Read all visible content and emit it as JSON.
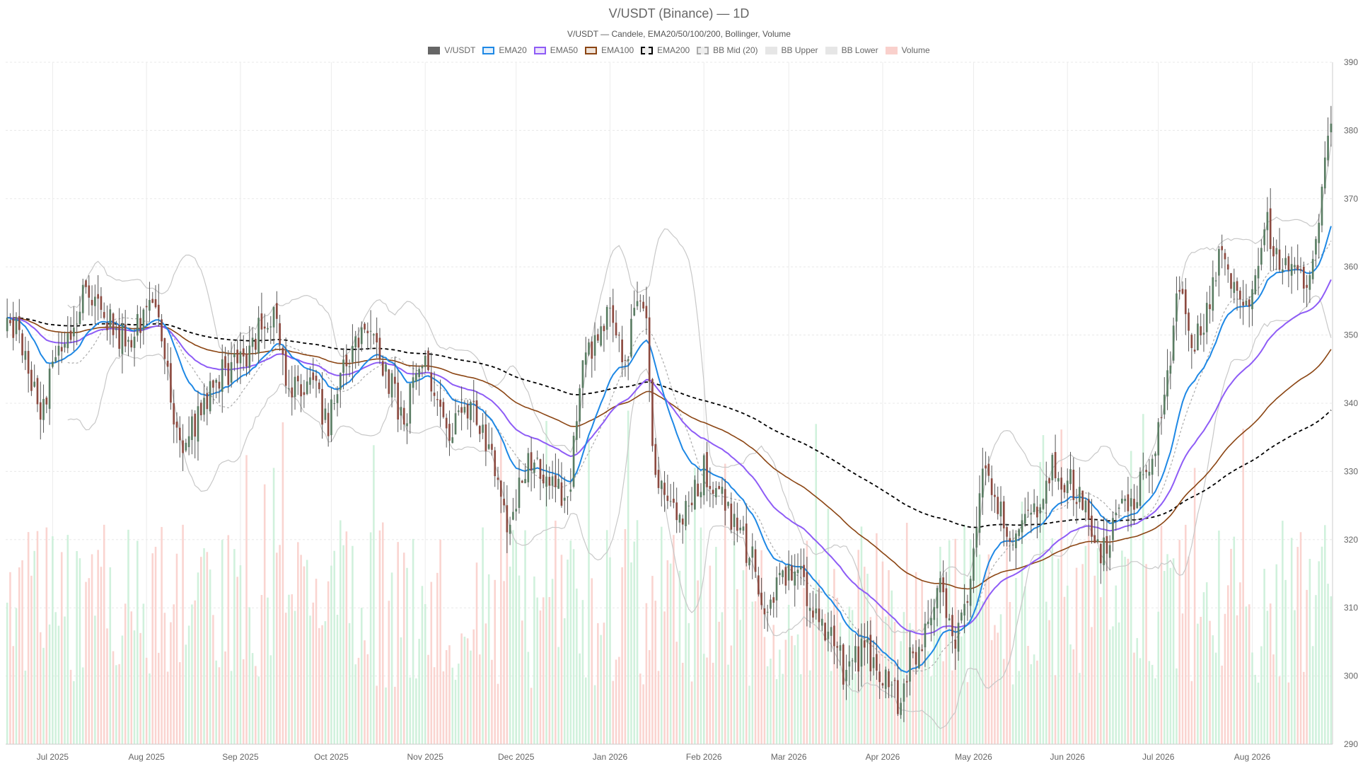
{
  "chart_data": {
    "type": "candlestick",
    "title": "V/USDT (Binance) — 1D",
    "subtitle": "V/USDT — Candele, EMA20/50/100/200, Bollinger, Volume",
    "legend": [
      {
        "name": "V/USDT",
        "fill": "#666666",
        "border": "#666666",
        "dash": false
      },
      {
        "name": "EMA20",
        "fill": "#e3f0fc",
        "border": "#1e88e5",
        "dash": false
      },
      {
        "name": "EMA50",
        "fill": "#ede3fb",
        "border": "#8e5cf6",
        "dash": false
      },
      {
        "name": "EMA100",
        "fill": "#efe3d9",
        "border": "#8b4513",
        "dash": false
      },
      {
        "name": "EMA200",
        "fill": "#eeeeee",
        "border": "#000000",
        "dash": true
      },
      {
        "name": "BB Mid (20)",
        "fill": "#eeeeee",
        "border": "#aaaaaa",
        "dash": true
      },
      {
        "name": "BB Upper",
        "fill": "#e6e6e6",
        "border": "#e6e6e6",
        "dash": false
      },
      {
        "name": "BB Lower",
        "fill": "#e6e6e6",
        "border": "#e6e6e6",
        "dash": false
      },
      {
        "name": "Volume",
        "fill": "#f9d0cc",
        "border": "#f9d0cc",
        "dash": false
      }
    ],
    "x_ticks": [
      "Jul 2025",
      "Aug 2025",
      "Sep 2025",
      "Oct 2025",
      "Nov 2025",
      "Dec 2025",
      "Jan 2026",
      "Feb 2026",
      "Mar 2026",
      "Apr 2026",
      "May 2026",
      "Jun 2026",
      "Jul 2026",
      "Aug 2026"
    ],
    "ylim": [
      290,
      390
    ],
    "y_ticks": [
      290,
      300,
      310,
      320,
      330,
      340,
      350,
      360,
      370,
      380,
      390
    ],
    "y_axis_side": "right",
    "grid": true,
    "x_range": {
      "start": "2025-06-16",
      "end": "2026-08-27"
    },
    "close_keypoints": [
      [
        "2025-06-16",
        353
      ],
      [
        "2025-06-20",
        350
      ],
      [
        "2025-06-26",
        339
      ],
      [
        "2025-07-01",
        344
      ],
      [
        "2025-07-05",
        348
      ],
      [
        "2025-07-10",
        355
      ],
      [
        "2025-07-15",
        356
      ],
      [
        "2025-07-20",
        352
      ],
      [
        "2025-07-26",
        348
      ],
      [
        "2025-08-01",
        354
      ],
      [
        "2025-08-05",
        352
      ],
      [
        "2025-08-10",
        338
      ],
      [
        "2025-08-14",
        333
      ],
      [
        "2025-08-18",
        339
      ],
      [
        "2025-08-24",
        344
      ],
      [
        "2025-08-31",
        345
      ],
      [
        "2025-09-06",
        350
      ],
      [
        "2025-09-12",
        352
      ],
      [
        "2025-09-18",
        341
      ],
      [
        "2025-09-24",
        344
      ],
      [
        "2025-09-30",
        337
      ],
      [
        "2025-10-05",
        345
      ],
      [
        "2025-10-12",
        351
      ],
      [
        "2025-10-18",
        345
      ],
      [
        "2025-10-25",
        338
      ],
      [
        "2025-11-01",
        347
      ],
      [
        "2025-11-05",
        341
      ],
      [
        "2025-11-10",
        336
      ],
      [
        "2025-11-16",
        341
      ],
      [
        "2025-11-22",
        334
      ],
      [
        "2025-11-28",
        322
      ],
      [
        "2025-12-03",
        330
      ],
      [
        "2025-12-08",
        331
      ],
      [
        "2025-12-14",
        327
      ],
      [
        "2025-12-19",
        328
      ],
      [
        "2025-12-22",
        344
      ],
      [
        "2025-12-27",
        350
      ],
      [
        "2026-01-01",
        353
      ],
      [
        "2026-01-06",
        345
      ],
      [
        "2026-01-10",
        355
      ],
      [
        "2026-01-13",
        352
      ],
      [
        "2026-01-16",
        328
      ],
      [
        "2026-01-20",
        326
      ],
      [
        "2026-01-25",
        324
      ],
      [
        "2026-02-01",
        330
      ],
      [
        "2026-02-06",
        326
      ],
      [
        "2026-02-12",
        322
      ],
      [
        "2026-02-18",
        316
      ],
      [
        "2026-02-22",
        308
      ],
      [
        "2026-02-27",
        316
      ],
      [
        "2026-03-05",
        314
      ],
      [
        "2026-03-10",
        310
      ],
      [
        "2026-03-15",
        306
      ],
      [
        "2026-03-20",
        300
      ],
      [
        "2026-03-26",
        304
      ],
      [
        "2026-04-01",
        300
      ],
      [
        "2026-04-06",
        296
      ],
      [
        "2026-04-10",
        302
      ],
      [
        "2026-04-15",
        306
      ],
      [
        "2026-04-20",
        312
      ],
      [
        "2026-04-25",
        306
      ],
      [
        "2026-04-30",
        312
      ],
      [
        "2026-05-04",
        331
      ],
      [
        "2026-05-08",
        327
      ],
      [
        "2026-05-12",
        320
      ],
      [
        "2026-05-18",
        322
      ],
      [
        "2026-05-24",
        327
      ],
      [
        "2026-05-28",
        331
      ],
      [
        "2026-06-02",
        328
      ],
      [
        "2026-06-07",
        324
      ],
      [
        "2026-06-12",
        319
      ],
      [
        "2026-06-17",
        322
      ],
      [
        "2026-06-22",
        326
      ],
      [
        "2026-06-28",
        330
      ],
      [
        "2026-07-03",
        340
      ],
      [
        "2026-07-08",
        357
      ],
      [
        "2026-07-12",
        348
      ],
      [
        "2026-07-17",
        354
      ],
      [
        "2026-07-22",
        362
      ],
      [
        "2026-07-26",
        358
      ],
      [
        "2026-08-01",
        355
      ],
      [
        "2026-08-06",
        366
      ],
      [
        "2026-08-10",
        362
      ],
      [
        "2026-08-14",
        360
      ],
      [
        "2026-08-18",
        358
      ],
      [
        "2026-08-22",
        362
      ],
      [
        "2026-08-25",
        374
      ],
      [
        "2026-08-27",
        381
      ]
    ],
    "ema_windows": [
      20,
      50,
      100,
      200
    ],
    "bollinger": {
      "period": 20,
      "std": 2
    },
    "volume_colors": {
      "up": "#c8efd6",
      "down": "#f9cdc8"
    },
    "candle_colors": {
      "up": "#5a7d63",
      "down": "#8c4a40",
      "wick": "#555555"
    }
  }
}
